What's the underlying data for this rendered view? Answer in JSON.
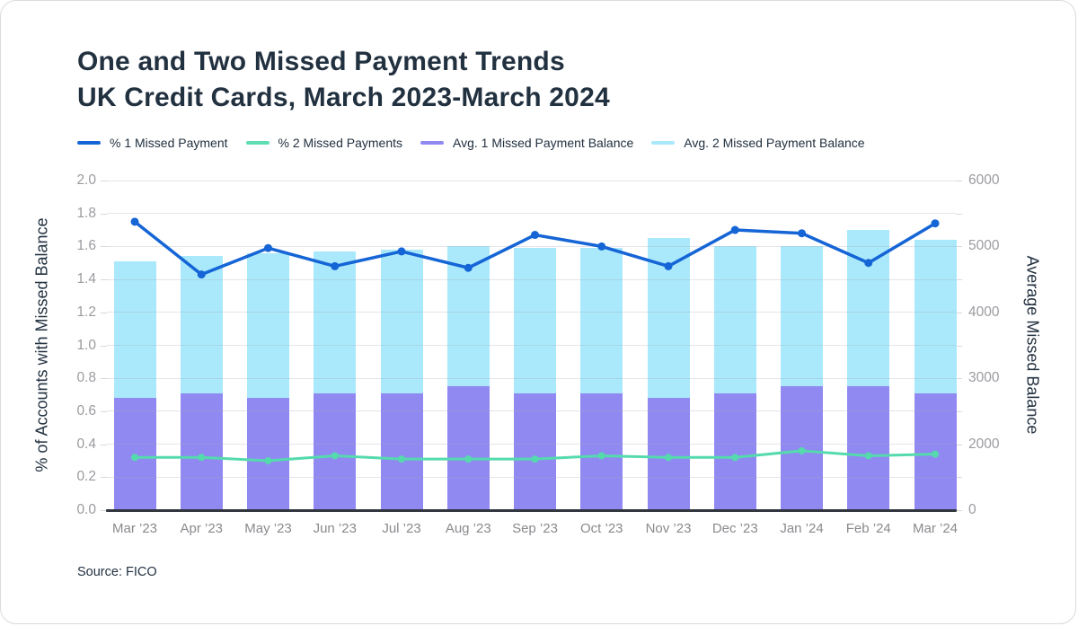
{
  "card": {
    "title_line1": "One and Two Missed Payment Trends",
    "title_line2": "UK Credit Cards, March 2023-March 2024",
    "source": "Source: FICO"
  },
  "legend": [
    {
      "label": "% 1 Missed Payment",
      "color": "#1565D6"
    },
    {
      "label": "% 2 Missed Payments",
      "color": "#5FDDB3"
    },
    {
      "label": "Avg. 1 Missed Payment Balance",
      "color": "#9089F1"
    },
    {
      "label": "Avg. 2 Missed Payment Balance",
      "color": "#A9E9FB"
    }
  ],
  "chart_data": {
    "type": "combo-bar-line",
    "title": "One and Two Missed Payment Trends UK Credit Cards, March 2023-March 2024",
    "categories": [
      "Mar ’23",
      "Apr ’23",
      "May ’23",
      "Jun ’23",
      "Jul ’23",
      "Aug ’23",
      "Sep ’23",
      "Oct ’23",
      "Nov ’23",
      "Dec ’23",
      "Jan ’24",
      "Feb ’24",
      "Mar ’24"
    ],
    "series": [
      {
        "name": "% 1 Missed Payment",
        "type": "line",
        "axis": "left",
        "color": "#1565D6",
        "values": [
          1.75,
          1.43,
          1.59,
          1.48,
          1.57,
          1.47,
          1.67,
          1.6,
          1.48,
          1.7,
          1.68,
          1.5,
          1.74
        ]
      },
      {
        "name": "% 2 Missed Payments",
        "type": "line",
        "axis": "left",
        "color": "#54DAAD",
        "values": [
          0.32,
          0.32,
          0.3,
          0.33,
          0.31,
          0.31,
          0.31,
          0.33,
          0.32,
          0.32,
          0.36,
          0.33,
          0.34
        ]
      },
      {
        "name": "Avg. 1 Missed Payment Balance",
        "type": "bar",
        "axis": "right",
        "color": "#9089F1",
        "values_left_axis_scale": [
          0.68,
          0.71,
          0.68,
          0.71,
          0.71,
          0.75,
          0.71,
          0.71,
          0.68,
          0.71,
          0.75,
          0.75,
          0.71
        ],
        "approx_balance": [
          2700,
          2775,
          2700,
          2775,
          2775,
          2875,
          2775,
          2775,
          2700,
          2775,
          2875,
          2875,
          2775
        ]
      },
      {
        "name": "Avg. 2 Missed Payment Balance",
        "type": "bar",
        "axis": "right",
        "color": "#A9E9FB",
        "values_left_axis_scale": [
          1.51,
          1.54,
          1.56,
          1.57,
          1.58,
          1.6,
          1.59,
          1.59,
          1.65,
          1.6,
          1.6,
          1.7,
          1.64
        ],
        "approx_balance": [
          4775,
          4850,
          4900,
          4925,
          4950,
          5000,
          4975,
          4975,
          5125,
          5000,
          5000,
          5250,
          5100
        ]
      }
    ],
    "left_axis": {
      "label": "% of Accounts with Missed Balance",
      "min": 0.0,
      "max": 2.0,
      "tick_step": 0.2,
      "tick_labels": [
        "2.0",
        "1.8",
        "1.6",
        "1.4",
        "1.2",
        "1.0",
        "0.8",
        "0.6",
        "0.4",
        "0.2",
        "0.0"
      ]
    },
    "right_axis": {
      "label": "Average Missed Balance",
      "tick_labels": [
        "6000",
        "5000",
        "4000",
        "3000",
        "2000",
        "0"
      ],
      "tick_positions_left_axis_scale": [
        2.0,
        1.6,
        1.2,
        0.8,
        0.4,
        0.0
      ]
    },
    "grid": "horizontal",
    "legend_position": "top"
  },
  "colors": {
    "title_text": "#223140",
    "tick_text": "#9B9BA0",
    "xlabel_text": "#8A8A8F",
    "grid_overlay": "rgba(170,170,182,0.30)",
    "tick_dash": "#D8D8DC",
    "axis_line": "#31353E",
    "card_border": "#D9DBDE"
  }
}
